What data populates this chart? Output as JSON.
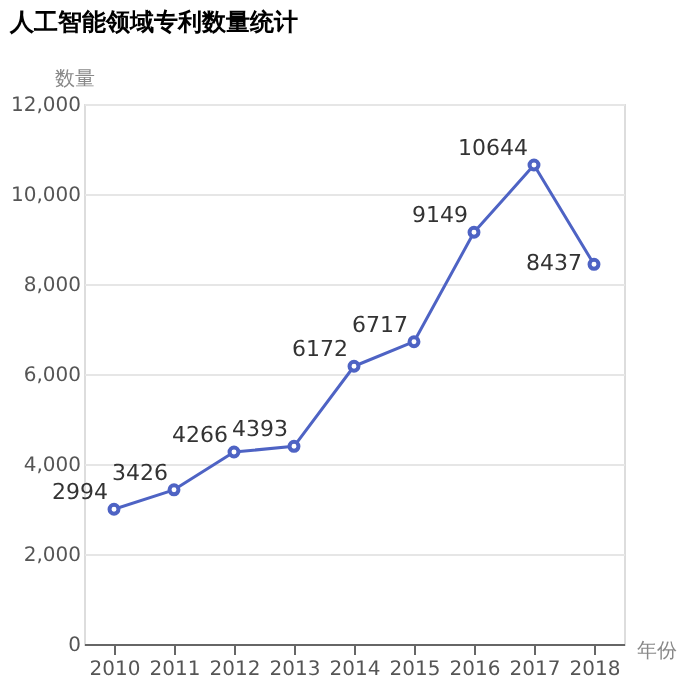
{
  "chart_data": {
    "type": "line",
    "title": "人工智能领域专利数量统计",
    "xlabel": "年份",
    "ylabel": "数量",
    "categories": [
      "2010",
      "2011",
      "2012",
      "2013",
      "2014",
      "2015",
      "2016",
      "2017",
      "2018"
    ],
    "series": [
      {
        "color": "#4e63c4",
        "values": [
          2994,
          3426,
          4266,
          4393,
          6172,
          6717,
          9149,
          10644,
          8437
        ]
      }
    ],
    "ylim": [
      0,
      12000
    ],
    "yticks": [
      0,
      {
        "value": 2000,
        "label": "2,000"
      },
      {
        "value": 4000,
        "label": "4,000"
      },
      {
        "value": 6000,
        "label": "6,000"
      },
      {
        "value": 8000,
        "label": "8,000"
      },
      {
        "value": 10000,
        "label": "10,000"
      },
      {
        "value": 12000,
        "label": "12,000"
      }
    ],
    "grid": "y",
    "marker": "circle",
    "line_style": "solid",
    "data_labels": true
  }
}
